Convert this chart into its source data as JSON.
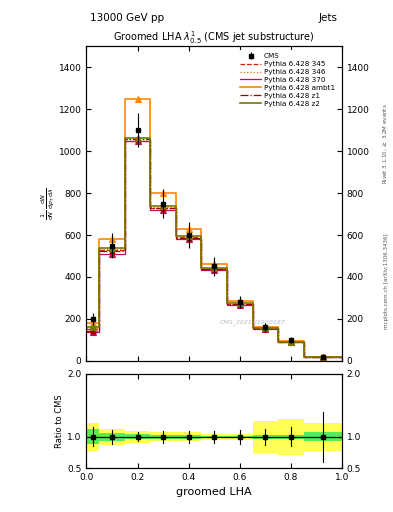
{
  "title": "Groomed LHA $\\lambda^{1}_{0.5}$ (CMS jet substructure)",
  "top_label_left": "13000 GeV pp",
  "top_label_right": "Jets",
  "xlabel": "groomed LHA",
  "ylabel_ratio": "Ratio to CMS",
  "watermark": "CMS_2021_I1920187",
  "right_label": "Rivet 3.1.10, $\\geq$ 3.2M events",
  "right_label2": "mcplots.cern.ch [arXiv:1306.3436]",
  "bin_edges": [
    0.0,
    0.05,
    0.15,
    0.25,
    0.35,
    0.45,
    0.55,
    0.65,
    0.75,
    0.85,
    1.0
  ],
  "cms_values": [
    200,
    550,
    1100,
    750,
    600,
    450,
    280,
    160,
    100,
    20
  ],
  "cms_errors": [
    30,
    60,
    80,
    70,
    60,
    45,
    30,
    20,
    15,
    8
  ],
  "p6_345_values": [
    150,
    530,
    1050,
    730,
    590,
    440,
    270,
    155,
    90,
    18
  ],
  "p6_346_values": [
    155,
    535,
    1055,
    735,
    592,
    442,
    272,
    157,
    91,
    19
  ],
  "p6_370_values": [
    140,
    510,
    1050,
    720,
    580,
    435,
    268,
    153,
    89,
    18
  ],
  "p6_ambt1_values": [
    180,
    580,
    1250,
    800,
    630,
    460,
    285,
    162,
    95,
    20
  ],
  "p6_z1_values": [
    145,
    525,
    1055,
    728,
    588,
    438,
    270,
    155,
    90,
    18
  ],
  "p6_z2_values": [
    160,
    540,
    1060,
    740,
    595,
    445,
    275,
    158,
    92,
    19
  ],
  "ratio_bin_edges": [
    0.0,
    0.05,
    0.15,
    0.25,
    0.35,
    0.45,
    0.55,
    0.65,
    0.75,
    0.85,
    1.0
  ],
  "ratio_green_lo": [
    0.88,
    0.94,
    0.96,
    0.97,
    0.97,
    0.98,
    0.98,
    0.97,
    0.97,
    0.93
  ],
  "ratio_green_hi": [
    1.12,
    1.06,
    1.04,
    1.03,
    1.03,
    1.02,
    1.02,
    1.03,
    1.03,
    1.07
  ],
  "ratio_yellow_lo": [
    0.78,
    0.87,
    0.9,
    0.93,
    0.93,
    0.95,
    0.95,
    0.75,
    0.72,
    0.78
  ],
  "ratio_yellow_hi": [
    1.22,
    1.13,
    1.1,
    1.07,
    1.07,
    1.05,
    1.05,
    1.25,
    1.28,
    1.22
  ],
  "colors": {
    "cms": "#000000",
    "p6_345": "#cc2200",
    "p6_346": "#cc7700",
    "p6_370": "#bb1155",
    "p6_ambt1": "#ff8800",
    "p6_z1": "#990000",
    "p6_z2": "#777700"
  },
  "ylim_main": [
    0,
    1500
  ],
  "yticks_main": [
    0,
    200,
    400,
    600,
    800,
    1000,
    1200,
    1400
  ],
  "ylim_ratio": [
    0.5,
    2.0
  ],
  "yticks_ratio": [
    0.5,
    1.0,
    2.0
  ]
}
